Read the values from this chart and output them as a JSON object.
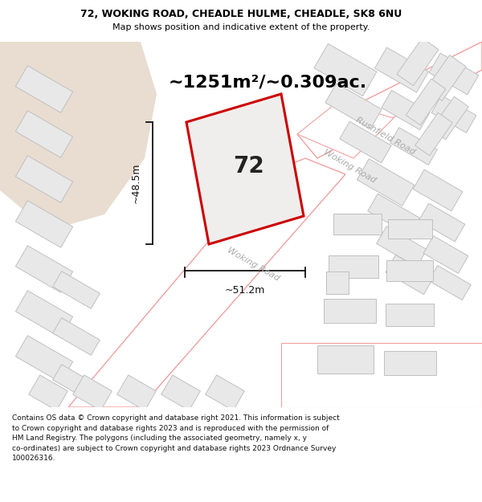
{
  "title_line1": "72, WOKING ROAD, CHEADLE HULME, CHEADLE, SK8 6NU",
  "title_line2": "Map shows position and indicative extent of the property.",
  "area_text": "~1251m²/~0.309ac.",
  "property_number": "72",
  "dim_height": "~48.5m",
  "dim_width": "~51.2m",
  "street_label1": "Woking Road",
  "street_label2": "Rushfield Road",
  "copyright_text": "Contains OS data © Crown copyright and database right 2021. This information is subject to Crown copyright and database rights 2023 and is reproduced with the permission of HM Land Registry. The polygons (including the associated geometry, namely x, y co-ordinates) are subject to Crown copyright and database rights 2023 Ordnance Survey 100026316.",
  "bg_color": "#f5f0eb",
  "map_bg": "#ffffff",
  "header_bg": "#ffffff",
  "footer_bg": "#ffffff",
  "property_fill": "#f0eeec",
  "property_edge": "#cc0000",
  "building_fill": "#e8e8e8",
  "building_edge": "#c0c0c0",
  "road_fill": "#ffffff",
  "road_edge": "#f0a0a0",
  "open_land": "#e8ddd0",
  "dim_color": "#111111",
  "street_label_color": "#aaaaaa",
  "text_color": "#000000",
  "footer_text_color": "#111111"
}
